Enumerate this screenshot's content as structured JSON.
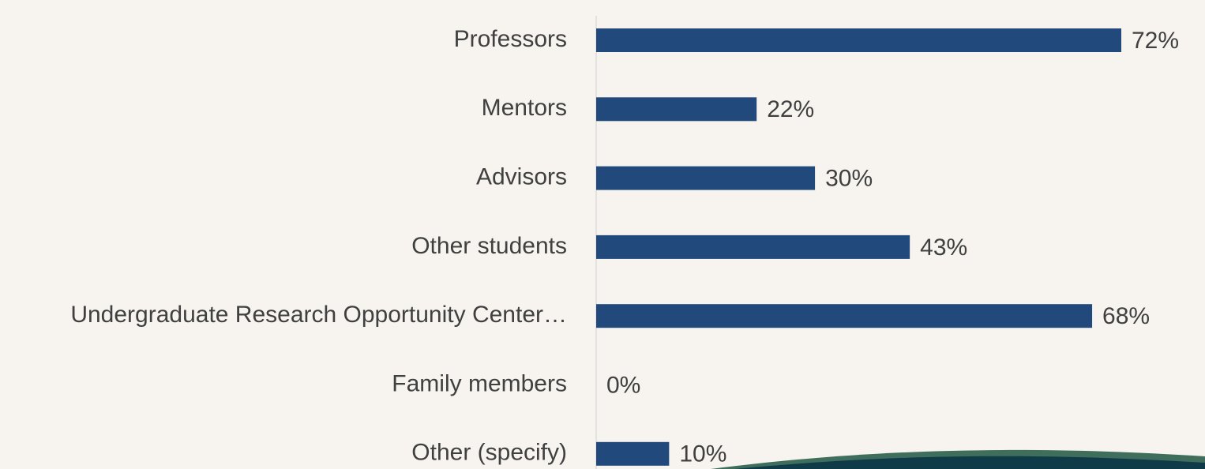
{
  "chart_data": {
    "type": "bar",
    "orientation": "horizontal",
    "categories": [
      "Professors",
      "Mentors",
      "Advisors",
      "Other students",
      "Undergraduate Research Opportunity Center…",
      "Family members",
      "Other (specify)"
    ],
    "values": [
      72,
      22,
      30,
      43,
      68,
      0,
      10
    ],
    "value_labels": [
      "72%",
      "22%",
      "30%",
      "43%",
      "68%",
      "0%",
      "10%"
    ],
    "color": "#21497c"
  }
}
